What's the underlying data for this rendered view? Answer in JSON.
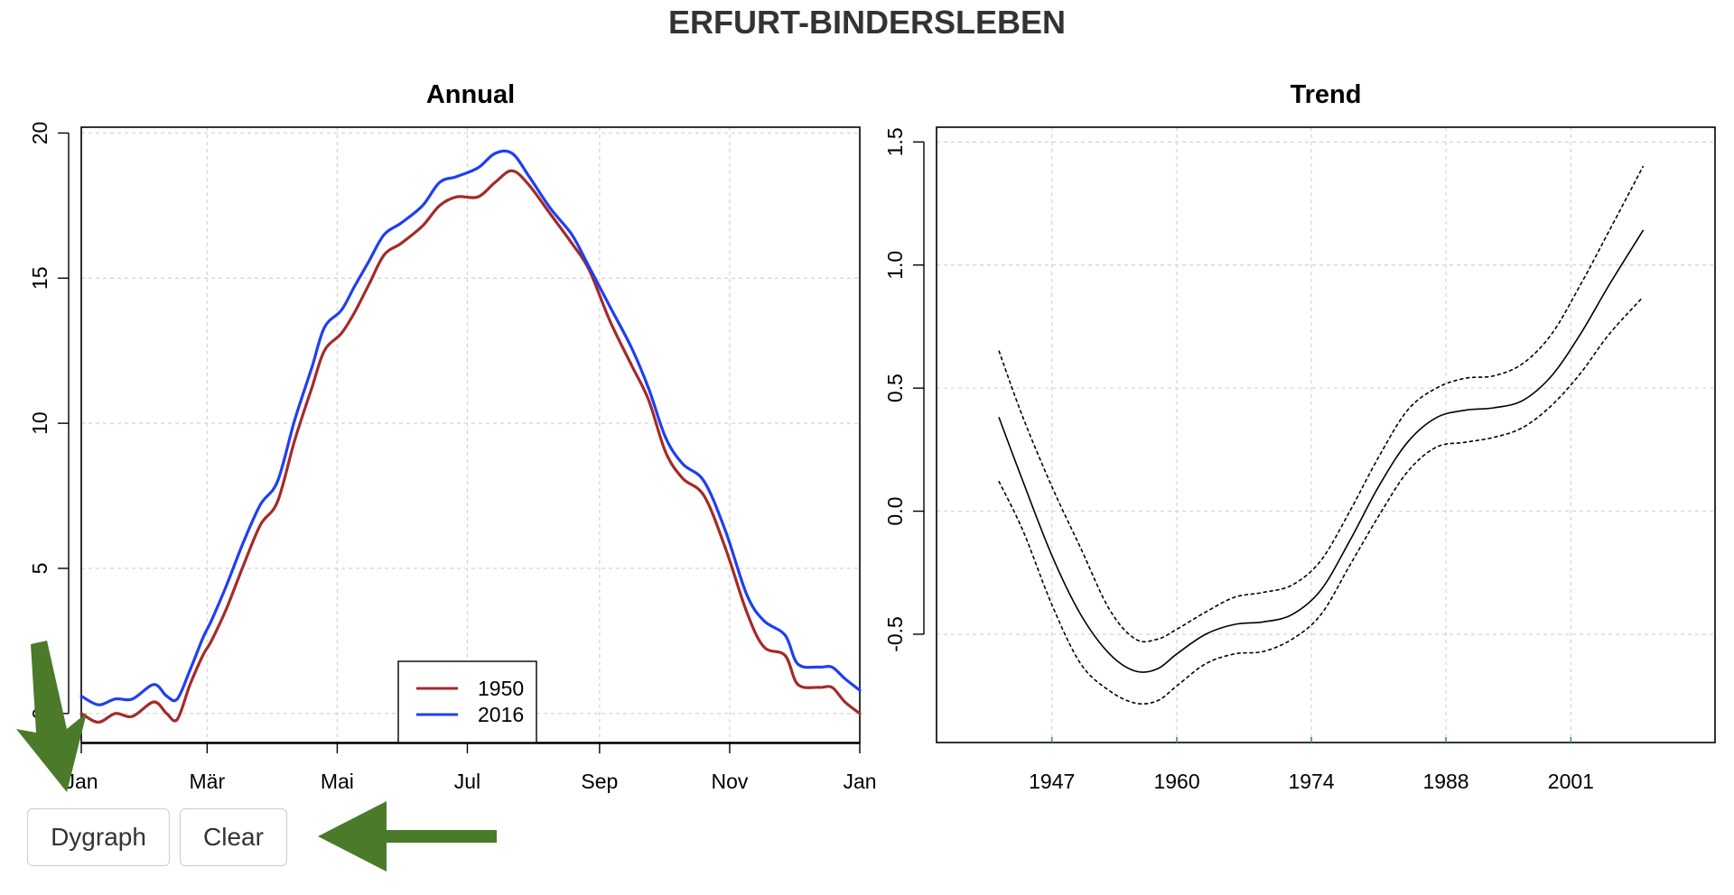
{
  "title": "ERFURT-BINDERSLEBEN",
  "buttons": {
    "dygraph_label": "Dygraph",
    "clear_label": "Clear"
  },
  "colors": {
    "series_1950": "#a52a2a",
    "series_2016": "#1f3ff0",
    "trend": "#000000",
    "arrow": "#4a7a2a",
    "grid": "#d3d3d3"
  },
  "chart_data": [
    {
      "type": "line",
      "title": "Annual",
      "xlabel": "",
      "ylabel": "",
      "xlim": [
        0,
        365
      ],
      "ylim": [
        -1,
        20.2
      ],
      "x_ticks": [
        0,
        59,
        120,
        181,
        243,
        304,
        365
      ],
      "x_tick_labels": [
        "Jan",
        "Mär",
        "Mai",
        "Jul",
        "Sep",
        "Nov",
        "Jan"
      ],
      "y_ticks": [
        0,
        5,
        10,
        15,
        20
      ],
      "y_tick_labels": [
        "0",
        "5",
        "10",
        "15",
        "20"
      ],
      "grid": true,
      "legend": {
        "position": "bottom-center",
        "entries": [
          "1950",
          "2016"
        ]
      },
      "series": [
        {
          "name": "1950",
          "x": [
            0,
            8,
            16,
            24,
            34,
            40,
            45,
            51,
            57,
            61,
            68,
            76,
            84,
            92,
            100,
            108,
            114,
            122,
            128,
            135,
            142,
            150,
            160,
            168,
            176,
            186,
            194,
            202,
            210,
            220,
            230,
            238,
            248,
            258,
            266,
            274,
            282,
            292,
            302,
            312,
            320,
            330,
            336,
            346,
            352,
            358,
            365
          ],
          "values": [
            0,
            -0.3,
            0,
            -0.1,
            0.4,
            0,
            -0.2,
            1.0,
            2.0,
            2.5,
            3.6,
            5.1,
            6.5,
            7.3,
            9.4,
            11.2,
            12.5,
            13.1,
            13.8,
            14.8,
            15.8,
            16.2,
            16.8,
            17.5,
            17.8,
            17.8,
            18.3,
            18.7,
            18.2,
            17.2,
            16.2,
            15.3,
            13.5,
            12.0,
            10.8,
            9.0,
            8.1,
            7.5,
            5.7,
            3.5,
            2.3,
            2.0,
            1.0,
            0.9,
            0.9,
            0.4,
            0
          ]
        },
        {
          "name": "2016",
          "x": [
            0,
            8,
            16,
            24,
            34,
            40,
            45,
            51,
            57,
            61,
            68,
            76,
            84,
            92,
            100,
            108,
            114,
            122,
            128,
            135,
            142,
            150,
            160,
            168,
            176,
            186,
            194,
            202,
            210,
            220,
            230,
            238,
            248,
            258,
            266,
            274,
            282,
            292,
            302,
            312,
            320,
            330,
            336,
            346,
            352,
            358,
            365
          ],
          "values": [
            0.6,
            0.3,
            0.5,
            0.5,
            1.0,
            0.6,
            0.5,
            1.5,
            2.6,
            3.2,
            4.4,
            5.9,
            7.2,
            8.0,
            10.1,
            11.9,
            13.3,
            13.9,
            14.7,
            15.6,
            16.5,
            16.9,
            17.5,
            18.3,
            18.5,
            18.8,
            19.3,
            19.3,
            18.5,
            17.4,
            16.5,
            15.4,
            14.0,
            12.6,
            11.2,
            9.5,
            8.6,
            8.0,
            6.3,
            4.1,
            3.2,
            2.7,
            1.7,
            1.6,
            1.6,
            1.2,
            0.8
          ]
        }
      ]
    },
    {
      "type": "line",
      "title": "Trend",
      "xlabel": "",
      "ylabel": "",
      "xlim": [
        1935,
        2016
      ],
      "ylim": [
        -0.94,
        1.56
      ],
      "x_ticks": [
        1947,
        1960,
        1974,
        1988,
        2001
      ],
      "x_tick_labels": [
        "1947",
        "1960",
        "1974",
        "1988",
        "2001"
      ],
      "y_ticks": [
        -0.5,
        0.0,
        0.5,
        1.0,
        1.5
      ],
      "y_tick_labels": [
        "-0.5",
        "0.0",
        "0.5",
        "1.0",
        "1.5"
      ],
      "grid": true,
      "series": [
        {
          "name": "",
          "x": [
            1941.5,
            1944,
            1947,
            1950,
            1953,
            1955.7,
            1958,
            1960,
            1963,
            1966,
            1969,
            1972,
            1975,
            1978,
            1981,
            1984,
            1987,
            1990,
            1993,
            1996,
            1999,
            2002,
            2005,
            2008.5
          ],
          "values": [
            0.38,
            0.12,
            -0.18,
            -0.42,
            -0.58,
            -0.65,
            -0.64,
            -0.58,
            -0.5,
            -0.46,
            -0.45,
            -0.42,
            -0.32,
            -0.12,
            0.1,
            0.28,
            0.38,
            0.41,
            0.42,
            0.45,
            0.55,
            0.72,
            0.92,
            1.14
          ]
        },
        {
          "name": "",
          "x": [
            1941.5,
            1944,
            1947,
            1950,
            1953,
            1955.7,
            1958,
            1960,
            1963,
            1966,
            1969,
            1972,
            1975,
            1978,
            1981,
            1984,
            1987,
            1990,
            1993,
            1996,
            1999,
            2002,
            2005,
            2008.5
          ],
          "values": [
            0.65,
            0.38,
            0.1,
            -0.15,
            -0.4,
            -0.52,
            -0.52,
            -0.48,
            -0.41,
            -0.35,
            -0.33,
            -0.3,
            -0.2,
            0.0,
            0.22,
            0.41,
            0.5,
            0.54,
            0.55,
            0.6,
            0.72,
            0.92,
            1.14,
            1.4
          ]
        },
        {
          "name": "",
          "x": [
            1941.5,
            1944,
            1947,
            1950,
            1953,
            1955.7,
            1958,
            1960,
            1963,
            1966,
            1969,
            1972,
            1975,
            1978,
            1981,
            1984,
            1987,
            1990,
            1993,
            1996,
            1999,
            2002,
            2005,
            2008.5
          ],
          "values": [
            0.12,
            -0.08,
            -0.38,
            -0.62,
            -0.73,
            -0.78,
            -0.77,
            -0.71,
            -0.62,
            -0.58,
            -0.57,
            -0.52,
            -0.42,
            -0.22,
            -0.02,
            0.16,
            0.26,
            0.28,
            0.3,
            0.34,
            0.43,
            0.56,
            0.72,
            0.87
          ]
        }
      ]
    }
  ]
}
